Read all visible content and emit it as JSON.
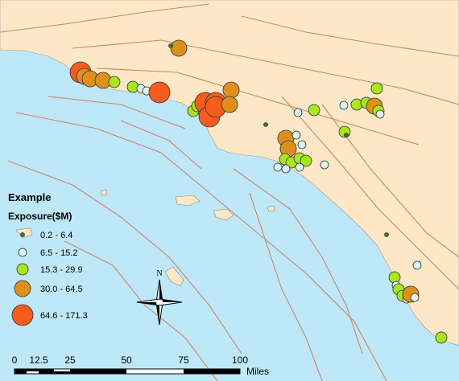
{
  "legend": {
    "title": "Example",
    "subtitle": "Exposure($M)",
    "items": [
      "0.2 - 6.4",
      "6.5 - 15.2",
      "15.3 - 29.9",
      "30.0 - 64.5",
      "64.6 - 171.3"
    ]
  },
  "scale_bar": {
    "labels": [
      "0",
      "12.5",
      "25",
      "50",
      "75",
      "100"
    ],
    "unit": "Miles"
  },
  "north_arrow": "N"
}
